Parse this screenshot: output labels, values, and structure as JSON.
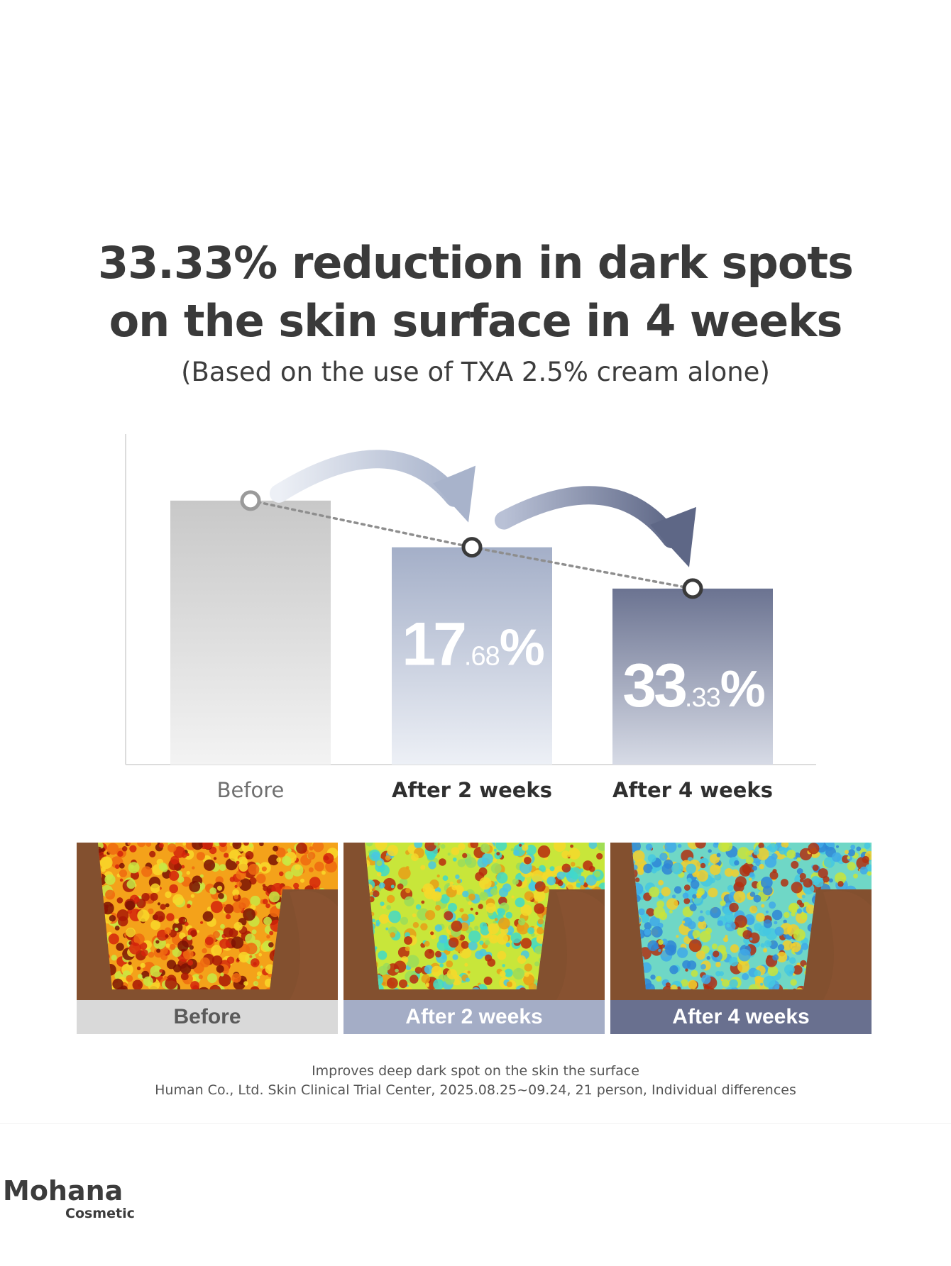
{
  "title": {
    "line1": "33.33% reduction in dark spots",
    "line2": "on the skin surface in 4 weeks",
    "subtitle": "(Based on the use of TXA 2.5% cream alone)"
  },
  "chart_data": {
    "type": "bar",
    "categories": [
      "Before",
      "After 2 weeks",
      "After 4 weeks"
    ],
    "values": [
      100,
      82.32,
      66.67
    ],
    "ylim": [
      0,
      115
    ],
    "data_labels": [
      null,
      {
        "main": "17",
        "decimal": ".68",
        "unit": "%"
      },
      {
        "main": "33",
        "decimal": ".33",
        "unit": "%"
      }
    ],
    "trend_line": "dotted",
    "grid": false,
    "bar_colors": [
      "#c8c8c8",
      "#a4afc8",
      "#6b7391"
    ]
  },
  "photos": [
    {
      "label": "Before",
      "scheme": "before"
    },
    {
      "label": "After 2 weeks",
      "scheme": "after2"
    },
    {
      "label": "After 4 weeks",
      "scheme": "after4"
    }
  ],
  "footnote": {
    "line1": "Improves deep  dark spot on the skin  the surface",
    "line2": "Human Co., Ltd. Skin Clinical Trial Center, 2025.08.25~09.24, 21 person, Individual differences"
  },
  "brand": {
    "name": "Mohana",
    "sub": "Cosmetic"
  },
  "colors": {
    "label_before_bg": "#d9d9d9",
    "label_after2_bg": "#a4adc6",
    "label_after4_bg": "#69708f"
  }
}
